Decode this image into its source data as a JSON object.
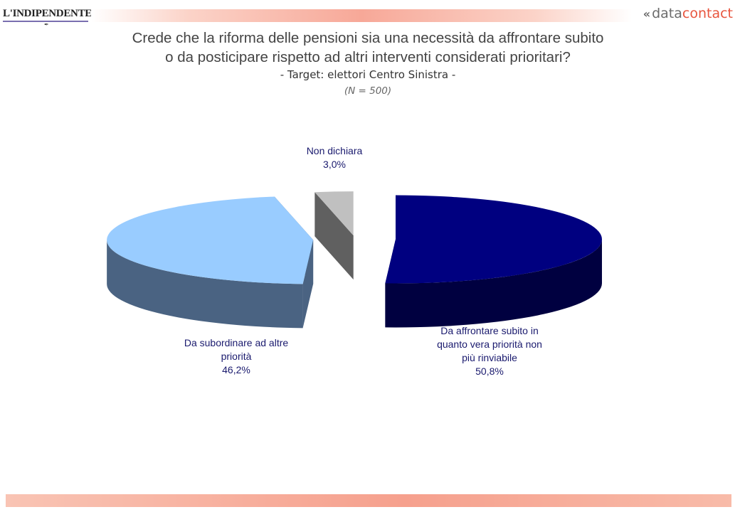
{
  "header": {
    "left_logo_text": "L'INDIPENDENTE",
    "right_logo_part1": "data",
    "right_logo_part2": "contact"
  },
  "chart_data": {
    "type": "pie",
    "title_line1": "Crede che la riforma delle pensioni sia una necessità da affrontare subito",
    "title_line2": "o da posticipare rispetto ad altri interventi considerati prioritari?",
    "subtitle": "- Target: elettori Centro Sinistra -",
    "note": "(N = 500)",
    "slices": [
      {
        "label_lines": [
          "Da affrontare subito in",
          "quanto vera priorità non",
          "più rinviabile"
        ],
        "value": 50.8,
        "value_label": "50,8%",
        "color": "#000080"
      },
      {
        "label_lines": [
          "Da subordinare ad altre",
          "priorità"
        ],
        "value": 46.2,
        "value_label": "46,2%",
        "color": "#99ccff"
      },
      {
        "label_lines": [
          "Non dichiara"
        ],
        "value": 3.0,
        "value_label": "3,0%",
        "color": "#c0c0c0"
      }
    ]
  }
}
